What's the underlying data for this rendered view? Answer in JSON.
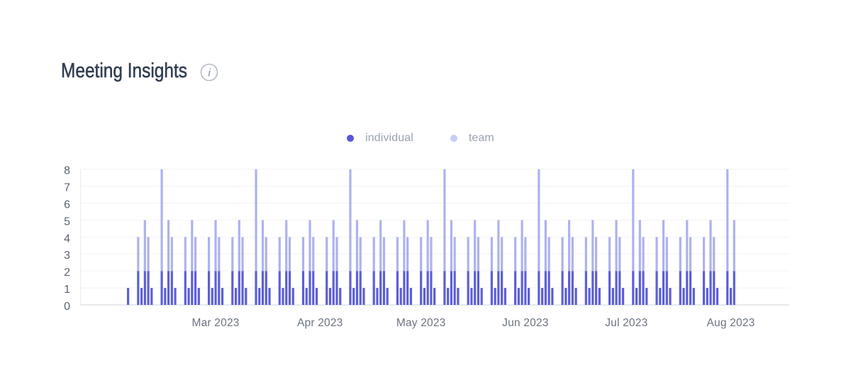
{
  "header": {
    "title": "Meeting Insights",
    "info_icon": "info-circle-icon",
    "info_glyph": "i"
  },
  "legend": {
    "items": [
      {
        "label": "individual",
        "dot_color": "#5a55da"
      },
      {
        "label": "team",
        "dot_color": "#c5cdf9"
      }
    ]
  },
  "colors": {
    "title_text": "#333f52",
    "legend_text": "#9aa2b0",
    "y_tick_text": "#5b6370",
    "x_tick_text": "#6b7380",
    "gridline": "#f3f3f5",
    "baseline": "#dbdcdf",
    "axis_line": "#ebecee",
    "background": "#ffffff"
  },
  "chart_data": {
    "type": "bar",
    "stacked": true,
    "title": "Meeting Insights",
    "xlabel": "",
    "ylabel": "",
    "ylim": [
      0,
      8
    ],
    "grid": "horizontal",
    "legend_position": "top-center",
    "y_ticks": [
      0,
      1,
      2,
      3,
      4,
      5,
      6,
      7,
      8
    ],
    "x_ticks": [
      {
        "label": "Mar 2023",
        "date": "2023-03-01"
      },
      {
        "label": "Apr 2023",
        "date": "2023-04-01"
      },
      {
        "label": "May 2023",
        "date": "2023-05-01"
      },
      {
        "label": "Jun 2023",
        "date": "2023-06-01"
      },
      {
        "label": "Jul 2023",
        "date": "2023-07-01"
      },
      {
        "label": "Aug 2023",
        "date": "2023-08-01"
      }
    ],
    "date_range": [
      "2023-02-03",
      "2023-08-02"
    ],
    "series": [
      {
        "name": "individual",
        "color": "#5c5ed6"
      },
      {
        "name": "team",
        "color": "#aeb2ee"
      }
    ],
    "days": [
      {
        "date": "2023-02-03",
        "individual": 1,
        "team": 0
      },
      {
        "date": "2023-02-06",
        "individual": 2,
        "team": 2
      },
      {
        "date": "2023-02-07",
        "individual": 1,
        "team": 0
      },
      {
        "date": "2023-02-08",
        "individual": 2,
        "team": 3
      },
      {
        "date": "2023-02-09",
        "individual": 2,
        "team": 2
      },
      {
        "date": "2023-02-10",
        "individual": 1,
        "team": 0
      },
      {
        "date": "2023-02-13",
        "individual": 2,
        "team": 6
      },
      {
        "date": "2023-02-14",
        "individual": 1,
        "team": 0
      },
      {
        "date": "2023-02-15",
        "individual": 2,
        "team": 3
      },
      {
        "date": "2023-02-16",
        "individual": 2,
        "team": 2
      },
      {
        "date": "2023-02-17",
        "individual": 1,
        "team": 0
      },
      {
        "date": "2023-02-20",
        "individual": 2,
        "team": 2
      },
      {
        "date": "2023-02-21",
        "individual": 1,
        "team": 0
      },
      {
        "date": "2023-02-22",
        "individual": 2,
        "team": 3
      },
      {
        "date": "2023-02-23",
        "individual": 2,
        "team": 2
      },
      {
        "date": "2023-02-24",
        "individual": 1,
        "team": 0
      },
      {
        "date": "2023-02-27",
        "individual": 2,
        "team": 2
      },
      {
        "date": "2023-02-28",
        "individual": 1,
        "team": 0
      },
      {
        "date": "2023-03-01",
        "individual": 2,
        "team": 3
      },
      {
        "date": "2023-03-02",
        "individual": 2,
        "team": 2
      },
      {
        "date": "2023-03-03",
        "individual": 1,
        "team": 0
      },
      {
        "date": "2023-03-06",
        "individual": 2,
        "team": 2
      },
      {
        "date": "2023-03-07",
        "individual": 1,
        "team": 0
      },
      {
        "date": "2023-03-08",
        "individual": 2,
        "team": 3
      },
      {
        "date": "2023-03-09",
        "individual": 2,
        "team": 2
      },
      {
        "date": "2023-03-10",
        "individual": 1,
        "team": 0
      },
      {
        "date": "2023-03-13",
        "individual": 2,
        "team": 6
      },
      {
        "date": "2023-03-14",
        "individual": 1,
        "team": 0
      },
      {
        "date": "2023-03-15",
        "individual": 2,
        "team": 3
      },
      {
        "date": "2023-03-16",
        "individual": 2,
        "team": 2
      },
      {
        "date": "2023-03-17",
        "individual": 1,
        "team": 0
      },
      {
        "date": "2023-03-20",
        "individual": 2,
        "team": 2
      },
      {
        "date": "2023-03-21",
        "individual": 1,
        "team": 0
      },
      {
        "date": "2023-03-22",
        "individual": 2,
        "team": 3
      },
      {
        "date": "2023-03-23",
        "individual": 2,
        "team": 2
      },
      {
        "date": "2023-03-24",
        "individual": 1,
        "team": 0
      },
      {
        "date": "2023-03-27",
        "individual": 2,
        "team": 2
      },
      {
        "date": "2023-03-28",
        "individual": 1,
        "team": 0
      },
      {
        "date": "2023-03-29",
        "individual": 2,
        "team": 3
      },
      {
        "date": "2023-03-30",
        "individual": 2,
        "team": 2
      },
      {
        "date": "2023-03-31",
        "individual": 1,
        "team": 0
      },
      {
        "date": "2023-04-03",
        "individual": 2,
        "team": 2
      },
      {
        "date": "2023-04-04",
        "individual": 1,
        "team": 0
      },
      {
        "date": "2023-04-05",
        "individual": 2,
        "team": 3
      },
      {
        "date": "2023-04-06",
        "individual": 2,
        "team": 2
      },
      {
        "date": "2023-04-07",
        "individual": 1,
        "team": 0
      },
      {
        "date": "2023-04-10",
        "individual": 2,
        "team": 6
      },
      {
        "date": "2023-04-11",
        "individual": 1,
        "team": 0
      },
      {
        "date": "2023-04-12",
        "individual": 2,
        "team": 3
      },
      {
        "date": "2023-04-13",
        "individual": 2,
        "team": 2
      },
      {
        "date": "2023-04-14",
        "individual": 1,
        "team": 0
      },
      {
        "date": "2023-04-17",
        "individual": 2,
        "team": 2
      },
      {
        "date": "2023-04-18",
        "individual": 1,
        "team": 0
      },
      {
        "date": "2023-04-19",
        "individual": 2,
        "team": 3
      },
      {
        "date": "2023-04-20",
        "individual": 2,
        "team": 2
      },
      {
        "date": "2023-04-21",
        "individual": 1,
        "team": 0
      },
      {
        "date": "2023-04-24",
        "individual": 2,
        "team": 2
      },
      {
        "date": "2023-04-25",
        "individual": 1,
        "team": 0
      },
      {
        "date": "2023-04-26",
        "individual": 2,
        "team": 3
      },
      {
        "date": "2023-04-27",
        "individual": 2,
        "team": 2
      },
      {
        "date": "2023-04-28",
        "individual": 1,
        "team": 0
      },
      {
        "date": "2023-05-01",
        "individual": 2,
        "team": 2
      },
      {
        "date": "2023-05-02",
        "individual": 1,
        "team": 0
      },
      {
        "date": "2023-05-03",
        "individual": 2,
        "team": 3
      },
      {
        "date": "2023-05-04",
        "individual": 2,
        "team": 2
      },
      {
        "date": "2023-05-05",
        "individual": 1,
        "team": 0
      },
      {
        "date": "2023-05-08",
        "individual": 2,
        "team": 6
      },
      {
        "date": "2023-05-09",
        "individual": 1,
        "team": 0
      },
      {
        "date": "2023-05-10",
        "individual": 2,
        "team": 3
      },
      {
        "date": "2023-05-11",
        "individual": 2,
        "team": 2
      },
      {
        "date": "2023-05-12",
        "individual": 1,
        "team": 0
      },
      {
        "date": "2023-05-15",
        "individual": 2,
        "team": 2
      },
      {
        "date": "2023-05-16",
        "individual": 1,
        "team": 0
      },
      {
        "date": "2023-05-17",
        "individual": 2,
        "team": 3
      },
      {
        "date": "2023-05-18",
        "individual": 2,
        "team": 2
      },
      {
        "date": "2023-05-19",
        "individual": 1,
        "team": 0
      },
      {
        "date": "2023-05-22",
        "individual": 2,
        "team": 2
      },
      {
        "date": "2023-05-23",
        "individual": 1,
        "team": 0
      },
      {
        "date": "2023-05-24",
        "individual": 2,
        "team": 3
      },
      {
        "date": "2023-05-25",
        "individual": 2,
        "team": 2
      },
      {
        "date": "2023-05-26",
        "individual": 1,
        "team": 0
      },
      {
        "date": "2023-05-29",
        "individual": 2,
        "team": 2
      },
      {
        "date": "2023-05-30",
        "individual": 1,
        "team": 0
      },
      {
        "date": "2023-05-31",
        "individual": 2,
        "team": 3
      },
      {
        "date": "2023-06-01",
        "individual": 2,
        "team": 2
      },
      {
        "date": "2023-06-02",
        "individual": 1,
        "team": 0
      },
      {
        "date": "2023-06-05",
        "individual": 2,
        "team": 6
      },
      {
        "date": "2023-06-06",
        "individual": 1,
        "team": 0
      },
      {
        "date": "2023-06-07",
        "individual": 2,
        "team": 3
      },
      {
        "date": "2023-06-08",
        "individual": 2,
        "team": 2
      },
      {
        "date": "2023-06-09",
        "individual": 1,
        "team": 0
      },
      {
        "date": "2023-06-12",
        "individual": 2,
        "team": 2
      },
      {
        "date": "2023-06-13",
        "individual": 1,
        "team": 0
      },
      {
        "date": "2023-06-14",
        "individual": 2,
        "team": 3
      },
      {
        "date": "2023-06-15",
        "individual": 2,
        "team": 2
      },
      {
        "date": "2023-06-16",
        "individual": 1,
        "team": 0
      },
      {
        "date": "2023-06-19",
        "individual": 2,
        "team": 2
      },
      {
        "date": "2023-06-20",
        "individual": 1,
        "team": 0
      },
      {
        "date": "2023-06-21",
        "individual": 2,
        "team": 3
      },
      {
        "date": "2023-06-22",
        "individual": 2,
        "team": 2
      },
      {
        "date": "2023-06-23",
        "individual": 1,
        "team": 0
      },
      {
        "date": "2023-06-26",
        "individual": 2,
        "team": 2
      },
      {
        "date": "2023-06-27",
        "individual": 1,
        "team": 0
      },
      {
        "date": "2023-06-28",
        "individual": 2,
        "team": 3
      },
      {
        "date": "2023-06-29",
        "individual": 2,
        "team": 2
      },
      {
        "date": "2023-06-30",
        "individual": 1,
        "team": 0
      },
      {
        "date": "2023-07-03",
        "individual": 2,
        "team": 6
      },
      {
        "date": "2023-07-04",
        "individual": 1,
        "team": 0
      },
      {
        "date": "2023-07-05",
        "individual": 2,
        "team": 3
      },
      {
        "date": "2023-07-06",
        "individual": 2,
        "team": 2
      },
      {
        "date": "2023-07-07",
        "individual": 1,
        "team": 0
      },
      {
        "date": "2023-07-10",
        "individual": 2,
        "team": 2
      },
      {
        "date": "2023-07-11",
        "individual": 1,
        "team": 0
      },
      {
        "date": "2023-07-12",
        "individual": 2,
        "team": 3
      },
      {
        "date": "2023-07-13",
        "individual": 2,
        "team": 2
      },
      {
        "date": "2023-07-14",
        "individual": 1,
        "team": 0
      },
      {
        "date": "2023-07-17",
        "individual": 2,
        "team": 2
      },
      {
        "date": "2023-07-18",
        "individual": 1,
        "team": 0
      },
      {
        "date": "2023-07-19",
        "individual": 2,
        "team": 3
      },
      {
        "date": "2023-07-20",
        "individual": 2,
        "team": 2
      },
      {
        "date": "2023-07-21",
        "individual": 1,
        "team": 0
      },
      {
        "date": "2023-07-24",
        "individual": 2,
        "team": 2
      },
      {
        "date": "2023-07-25",
        "individual": 1,
        "team": 0
      },
      {
        "date": "2023-07-26",
        "individual": 2,
        "team": 3
      },
      {
        "date": "2023-07-27",
        "individual": 2,
        "team": 2
      },
      {
        "date": "2023-07-28",
        "individual": 1,
        "team": 0
      },
      {
        "date": "2023-07-31",
        "individual": 2,
        "team": 6
      },
      {
        "date": "2023-08-01",
        "individual": 1,
        "team": 0
      },
      {
        "date": "2023-08-02",
        "individual": 2,
        "team": 3
      }
    ]
  }
}
